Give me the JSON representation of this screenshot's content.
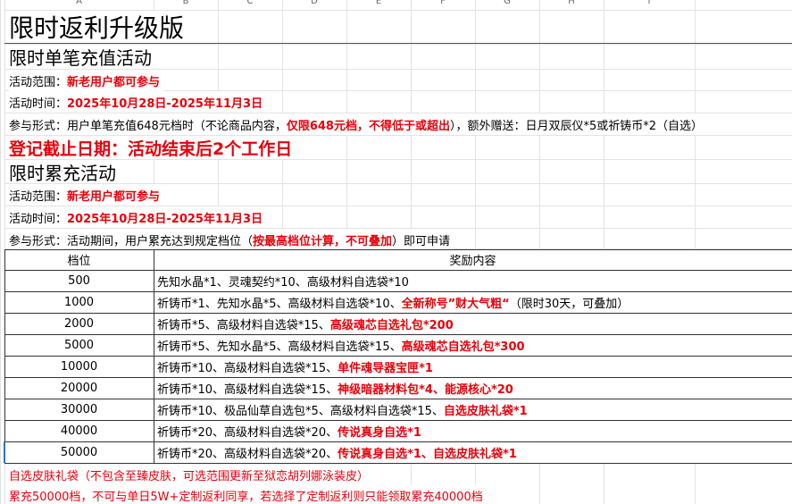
{
  "columns": [
    "A",
    "B",
    "C",
    "D",
    "E",
    "F",
    "G",
    "H",
    "I"
  ],
  "title": "限时返利升级版",
  "single": {
    "heading": "限时单笔充值活动",
    "lines": [
      [
        {
          "text": "活动范围："
        },
        {
          "text": "新老用户都可参与",
          "highlight": true
        }
      ],
      [
        {
          "text": "活动时间："
        },
        {
          "text": "2025年10月28日-2025年11月3日",
          "highlight": true
        }
      ],
      [
        {
          "text": "参与形式：用户单笔充值648元档时（不论商品内容，"
        },
        {
          "text": "仅限648元档，不得低于或超出",
          "highlight": true
        },
        {
          "text": "），额外赠送：日月双辰仪*5或祈铸币*2（自选）"
        }
      ]
    ],
    "deadline": "登记截止日期：活动结束后2个工作日"
  },
  "cumulative": {
    "heading": "限时累充活动",
    "lines": [
      [
        {
          "text": "活动范围："
        },
        {
          "text": "新老用户都可参与",
          "highlight": true
        }
      ],
      [
        {
          "text": "活动时间："
        },
        {
          "text": "2025年10月28日-2025年11月3日",
          "highlight": true
        }
      ],
      [
        {
          "text": "参与形式：活动期间，用户累充达到规定档位（"
        },
        {
          "text": "按最高档位计算，不可叠加",
          "highlight": true
        },
        {
          "text": "）即可申请"
        }
      ]
    ]
  },
  "table": {
    "header": [
      "档位",
      "奖励内容"
    ],
    "rows": [
      {
        "tier": 500,
        "reward": [
          {
            "text": "先知水晶*1、灵魂契约*10、高级材料自选袋*10"
          }
        ]
      },
      {
        "tier": 1000,
        "reward": [
          {
            "text": "祈铸币*1、先知水晶*5、高级材料自选袋*10、"
          },
          {
            "text": "全新称号”财大气粗“",
            "highlight": true
          },
          {
            "text": "（限时30天，可叠加）"
          }
        ]
      },
      {
        "tier": 2000,
        "reward": [
          {
            "text": "祈铸币*5、高级材料自选袋*15、"
          },
          {
            "text": "高级魂芯自选礼包*200",
            "highlight": true
          }
        ]
      },
      {
        "tier": 5000,
        "reward": [
          {
            "text": "祈铸币*5、先知水晶*5、高级材料自选袋*15、"
          },
          {
            "text": "高级魂芯自选礼包*300",
            "highlight": true
          }
        ]
      },
      {
        "tier": 10000,
        "reward": [
          {
            "text": "祈铸币*10、高级材料自选袋*15、"
          },
          {
            "text": "单件魂导器宝匣*1",
            "highlight": true
          }
        ]
      },
      {
        "tier": 20000,
        "reward": [
          {
            "text": "祈铸币*10、高级材料自选袋*15、"
          },
          {
            "text": "神级暗器材料包*4、能源核心*20",
            "highlight": true
          }
        ]
      },
      {
        "tier": 30000,
        "reward": [
          {
            "text": "祈铸币*10、极品仙草自选包*5、高级材料自选袋*15、"
          },
          {
            "text": "自选皮肤礼袋*1",
            "highlight": true
          }
        ]
      },
      {
        "tier": 40000,
        "reward": [
          {
            "text": "祈铸币*20、高级材料自选袋*20、"
          },
          {
            "text": "传说真身自选*1",
            "highlight": true
          }
        ]
      },
      {
        "tier": 50000,
        "reward": [
          {
            "text": "祈铸币*20、高级材料自选袋*20、"
          },
          {
            "text": "传说真身自选*1、自选皮肤礼袋*1",
            "highlight": true
          }
        ]
      }
    ]
  },
  "notes": [
    "自选皮肤礼袋（不包含至臻皮肤，可选范围更新至狱恋胡列娜泳装皮）",
    "累充50000档，不可与单日5W+定制返利同享，若选择了定制返利则只能领取累充40000档"
  ]
}
